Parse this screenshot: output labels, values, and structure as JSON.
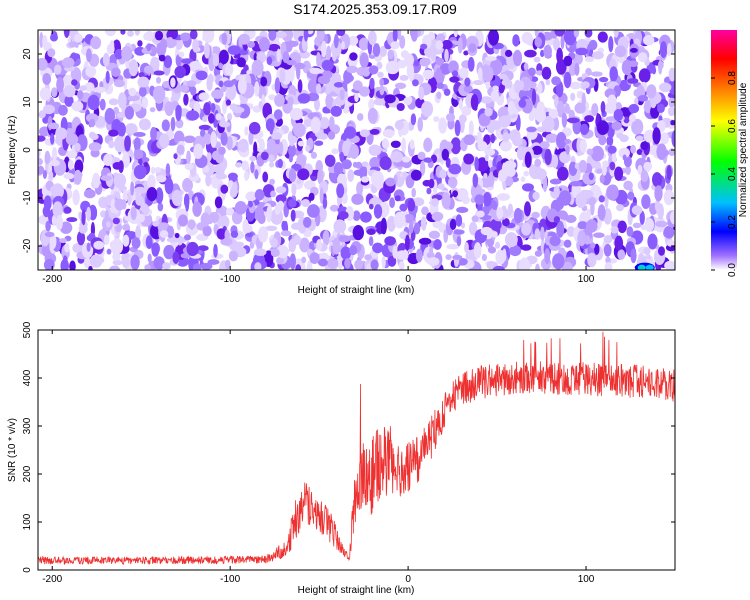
{
  "title": "S174.2025.353.09.17.R09",
  "chart_data": [
    {
      "type": "heatmap",
      "xlabel": "Height of straight line (km)",
      "ylabel": "Frequency (Hz)",
      "xlim": [
        -208,
        150
      ],
      "ylim": [
        -25,
        25
      ],
      "xticks": [
        -200,
        -100,
        0,
        100
      ],
      "yticks": [
        -20,
        -10,
        0,
        10,
        20
      ],
      "colorbar": {
        "label": "Normalized spectral amplitude",
        "range": [
          0,
          1
        ],
        "ticks": [
          0.0,
          0.2,
          0.4,
          0.6,
          0.8
        ],
        "tick_labels": [
          "0.0",
          "0.2",
          "0.4",
          "0.6",
          "0.8"
        ],
        "colors": [
          "#ffffff",
          "#a070ff",
          "#0000ff",
          "#00c0ff",
          "#00ff00",
          "#ffff00",
          "#ff8000",
          "#ff0000",
          "#ff00a0"
        ]
      },
      "description_values": {
        "background_level": 0.1,
        "hotspot": {
          "x": [
            127,
            139
          ],
          "y": [
            -25,
            -24
          ],
          "value": 0.3
        }
      }
    },
    {
      "type": "line",
      "xlabel": "Height of straight line (km)",
      "ylabel": "SNR (10 * v/v)",
      "xlim": [
        -208,
        150
      ],
      "ylim": [
        0,
        500
      ],
      "xticks": [
        -200,
        -100,
        0,
        100
      ],
      "yticks": [
        0,
        100,
        200,
        300,
        400,
        500
      ],
      "line_color": "#ee3030",
      "series": [
        {
          "envelope_x": [
            -208,
            -120,
            -80,
            -68,
            -64,
            -58,
            -52,
            -46,
            -42,
            -38,
            -33,
            -30,
            -26,
            -22,
            -18,
            -14,
            -10,
            -6,
            0,
            5,
            10,
            15,
            20,
            25,
            30,
            40,
            50,
            60,
            80,
            100,
            120,
            140,
            150
          ],
          "envelope_y": [
            20,
            20,
            22,
            45,
            100,
            140,
            115,
            100,
            80,
            45,
            25,
            150,
            195,
            180,
            220,
            225,
            230,
            205,
            215,
            225,
            260,
            290,
            330,
            360,
            375,
            390,
            395,
            400,
            400,
            398,
            395,
            390,
            385
          ],
          "noise_half_width": [
            8,
            8,
            8,
            20,
            45,
            45,
            40,
            35,
            30,
            15,
            8,
            70,
            80,
            80,
            80,
            75,
            70,
            65,
            60,
            55,
            50,
            45,
            40,
            35,
            35,
            35,
            35,
            35,
            35,
            35,
            35,
            35,
            35
          ]
        }
      ]
    }
  ]
}
